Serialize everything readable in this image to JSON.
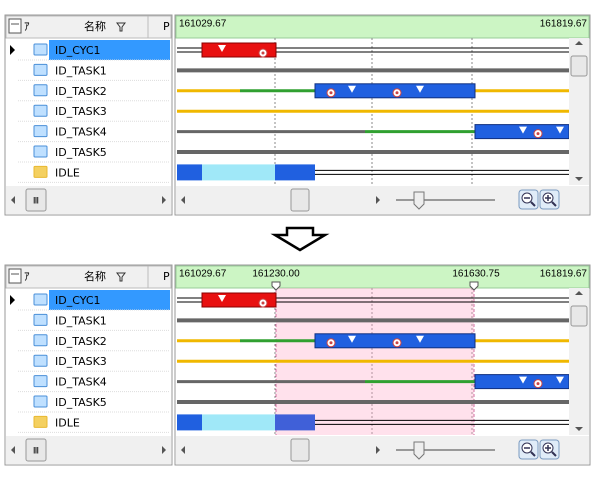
{
  "panels": [
    {
      "header": {
        "col1": "ｱ",
        "col2": "名称",
        "col3": "P"
      },
      "rows": [
        "ID_CYC1",
        "ID_TASK1",
        "ID_TASK2",
        "ID_TASK3",
        "ID_TASK4",
        "ID_TASK5",
        "IDLE"
      ],
      "timeline": {
        "start": "161029.67",
        "end": "161819.67"
      },
      "scrollbar": "Ⅲ"
    },
    {
      "header": {
        "col1": "ｱ",
        "col2": "名称",
        "col3": "P"
      },
      "rows": [
        "ID_CYC1",
        "ID_TASK1",
        "ID_TASK2",
        "ID_TASK3",
        "ID_TASK4",
        "ID_TASK5",
        "IDLE"
      ],
      "timeline": {
        "start": "161029.67",
        "end": "161819.67",
        "markers": [
          "161230.00",
          "161630.75"
        ]
      },
      "scrollbar": "Ⅲ"
    }
  ]
}
